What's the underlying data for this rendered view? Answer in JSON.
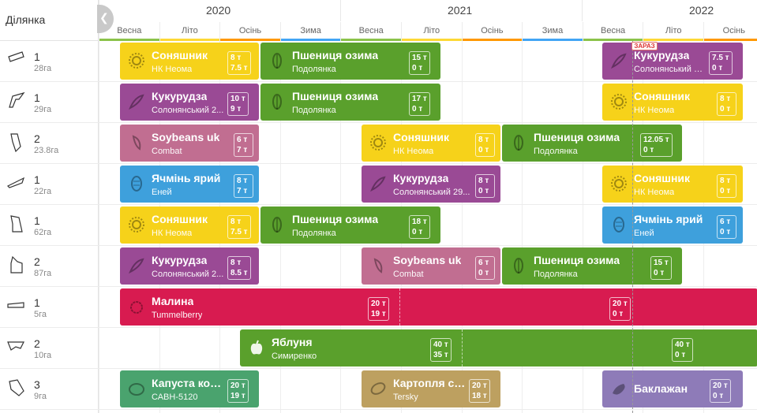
{
  "header": {
    "field_label": "Ділянка",
    "years": [
      "2020",
      "2021",
      "2022"
    ],
    "seasons": [
      "Весна",
      "Літо",
      "Осінь",
      "Зима",
      "Весна",
      "Літо",
      "Осінь",
      "Зима",
      "Весна",
      "Літо",
      "Осінь"
    ],
    "season_colors": [
      "#8bc34a",
      "#fdd835",
      "#ff9800",
      "#42a5f5"
    ],
    "now_label": "ЗАРАЗ"
  },
  "fields": [
    {
      "number": "1",
      "area": "28га"
    },
    {
      "number": "1",
      "area": "29га"
    },
    {
      "number": "2",
      "area": "23.8га"
    },
    {
      "number": "1",
      "area": "22га"
    },
    {
      "number": "1",
      "area": "62га"
    },
    {
      "number": "2",
      "area": "87га"
    },
    {
      "number": "1",
      "area": "5га"
    },
    {
      "number": "2",
      "area": "10га"
    },
    {
      "number": "3",
      "area": "9га"
    }
  ],
  "crops": [
    {
      "row": 0,
      "name": "Соняшник",
      "variety": "НК Неома",
      "planned": "8 т",
      "actual": "7.5 т",
      "color": "#f6d21a",
      "icon": "sunflower-icon"
    },
    {
      "row": 0,
      "name": "Пшениця озима",
      "variety": "Подолянка",
      "planned": "15 т",
      "actual": "0 т",
      "color": "#5aa02c",
      "icon": "wheat-icon"
    },
    {
      "row": 0,
      "name": "Кукурудза",
      "variety": "Солонянський 2...",
      "planned": "7.5 т",
      "actual": "0 т",
      "color": "#9a4a95",
      "icon": "corn-icon"
    },
    {
      "row": 1,
      "name": "Кукурудза",
      "variety": "Солонянський 2...",
      "planned": "10 т",
      "actual": "9 т",
      "color": "#9a4a95",
      "icon": "corn-icon"
    },
    {
      "row": 1,
      "name": "Пшениця озима",
      "variety": "Подолянка",
      "planned": "17 т",
      "actual": "0 т",
      "color": "#5aa02c",
      "icon": "wheat-icon"
    },
    {
      "row": 1,
      "name": "Соняшник",
      "variety": "НК Неома",
      "planned": "8 т",
      "actual": "0 т",
      "color": "#f6d21a",
      "icon": "sunflower-icon"
    },
    {
      "row": 2,
      "name": "Soybeans uk",
      "variety": "Combat",
      "planned": "6 т",
      "actual": "7 т",
      "color": "#c16e91",
      "icon": "soybean-icon"
    },
    {
      "row": 2,
      "name": "Соняшник",
      "variety": "НК Неома",
      "planned": "8 т",
      "actual": "0 т",
      "color": "#f6d21a",
      "icon": "sunflower-icon"
    },
    {
      "row": 2,
      "name": "Пшениця озима",
      "variety": "Подолянка",
      "planned": "12.05 т",
      "actual": "0 т",
      "color": "#5aa02c",
      "icon": "wheat-icon"
    },
    {
      "row": 3,
      "name": "Ячмінь ярий",
      "variety": "Еней",
      "planned": "8 т",
      "actual": "7 т",
      "color": "#3ea0dc",
      "icon": "barley-icon"
    },
    {
      "row": 3,
      "name": "Кукурудза",
      "variety": "Солонянський 29...",
      "planned": "8 т",
      "actual": "0 т",
      "color": "#9a4a95",
      "icon": "corn-icon"
    },
    {
      "row": 3,
      "name": "Соняшник",
      "variety": "НК Неома",
      "planned": "8 т",
      "actual": "0 т",
      "color": "#f6d21a",
      "icon": "sunflower-icon"
    },
    {
      "row": 4,
      "name": "Соняшник",
      "variety": "НК Неома",
      "planned": "8 т",
      "actual": "7.5 т",
      "color": "#f6d21a",
      "icon": "sunflower-icon"
    },
    {
      "row": 4,
      "name": "Пшениця озима",
      "variety": "Подолянка",
      "planned": "18 т",
      "actual": "0 т",
      "color": "#5aa02c",
      "icon": "wheat-icon"
    },
    {
      "row": 4,
      "name": "Ячмінь ярий",
      "variety": "Еней",
      "planned": "6 т",
      "actual": "0 т",
      "color": "#3ea0dc",
      "icon": "barley-icon"
    },
    {
      "row": 5,
      "name": "Кукурудза",
      "variety": "Солонянський 2...",
      "planned": "8 т",
      "actual": "8.5 т",
      "color": "#9a4a95",
      "icon": "corn-icon"
    },
    {
      "row": 5,
      "name": "Soybeans uk",
      "variety": "Combat",
      "planned": "6 т",
      "actual": "0 т",
      "color": "#c16e91",
      "icon": "soybean-icon"
    },
    {
      "row": 5,
      "name": "Пшениця озима",
      "variety": "Подолянка",
      "planned": "15 т",
      "actual": "0 т",
      "color": "#5aa02c",
      "icon": "wheat-icon"
    },
    {
      "row": 6,
      "name": "Малина",
      "variety": "Tummelberry",
      "planned": "20 т",
      "actual": "19 т",
      "planned2": "20 т",
      "actual2": "0 т",
      "color": "#d81b50",
      "icon": "raspberry-icon"
    },
    {
      "row": 7,
      "name": "Яблуня",
      "variety": "Симиренко",
      "planned": "40 т",
      "actual": "35 т",
      "planned2": "40 т",
      "actual2": "0 т",
      "color": "#5aa02c",
      "icon": "apple-icon"
    },
    {
      "row": 8,
      "name": "Капуста кор...",
      "variety": "САВН-5120",
      "planned": "20 т",
      "actual": "19 т",
      "color": "#4aa36e",
      "icon": "cabbage-icon"
    },
    {
      "row": 8,
      "name": "Картопля ст...",
      "variety": "Tersky",
      "planned": "20 т",
      "actual": "18 т",
      "color": "#bda060",
      "icon": "potato-icon"
    },
    {
      "row": 8,
      "name": "Баклажан",
      "variety": "",
      "planned": "20 т",
      "actual": "0 т",
      "color": "#8e7bb8",
      "icon": "eggplant-icon"
    }
  ]
}
